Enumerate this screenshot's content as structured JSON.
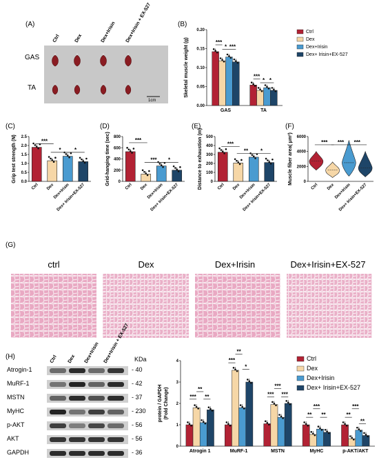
{
  "panels": {
    "A": "(A)",
    "B": "(B)",
    "C": "(C)",
    "D": "(D)",
    "E": "(E)",
    "F": "(F)",
    "G": "(G)",
    "H": "(H)"
  },
  "colors": {
    "ctrl": "#b22234",
    "dex": "#f6d7a7",
    "irisin": "#4a9bd0",
    "ex527": "#1e4568"
  },
  "photo": {
    "columns": [
      "Ctrl",
      "Dex",
      "Dex+Irisin",
      "Dex+Irisin + EX-527"
    ],
    "rows": [
      "GAS",
      "TA"
    ],
    "scale_bar": "1cm"
  },
  "he_stain": {
    "columns": [
      "ctrl",
      "Dex",
      "Dex+Irisin",
      "Dex+Irisin+EX-527"
    ]
  },
  "western": {
    "columns": [
      "Ctrl",
      "Dex",
      "Dex+Irisin",
      "Dex+Irisin + EX-527"
    ],
    "kda_label": "KDa",
    "rows": [
      {
        "name": "Atrogin-1",
        "kda": "40"
      },
      {
        "name": "MuRF-1",
        "kda": "42"
      },
      {
        "name": "MSTN",
        "kda": "37"
      },
      {
        "name": "MyHC",
        "kda": "230"
      },
      {
        "name": "p-AKT",
        "kda": "56"
      },
      {
        "name": "AKT",
        "kda": "56"
      },
      {
        "name": "GAPDH",
        "kda": "36"
      }
    ]
  },
  "chart_data": [
    {
      "id": "B",
      "type": "bar",
      "ylabel": "Skeletal muscle weight (g)",
      "ylim": [
        0,
        0.2
      ],
      "yticks": [
        0.0,
        0.05,
        0.1,
        0.15,
        0.2
      ],
      "categories": [
        "GAS",
        "TA"
      ],
      "series": [
        {
          "name": "Ctrl",
          "values": [
            0.142,
            0.054
          ]
        },
        {
          "name": "Dex",
          "values": [
            0.118,
            0.04
          ]
        },
        {
          "name": "Dex+Irisin",
          "values": [
            0.128,
            0.047
          ]
        },
        {
          "name": "Dex+ Irisin+EX-527",
          "values": [
            0.115,
            0.04
          ]
        }
      ],
      "significance": [
        {
          "group": 0,
          "from": 0,
          "to": 1,
          "label": "***",
          "y": 0.16
        },
        {
          "group": 0,
          "from": 1,
          "to": 2,
          "label": "*",
          "y": 0.148
        },
        {
          "group": 0,
          "from": 2,
          "to": 3,
          "label": "***",
          "y": 0.148
        },
        {
          "group": 1,
          "from": 0,
          "to": 1,
          "label": "***",
          "y": 0.07
        },
        {
          "group": 1,
          "from": 1,
          "to": 2,
          "label": "*",
          "y": 0.06
        },
        {
          "group": 1,
          "from": 2,
          "to": 3,
          "label": "*",
          "y": 0.06
        }
      ],
      "legend": "top-right"
    },
    {
      "id": "C",
      "type": "bar",
      "ylabel": "Grip test strength (N)",
      "ylim": [
        0,
        2.5
      ],
      "yticks": [
        0.0,
        0.5,
        1.0,
        1.5,
        2.0,
        2.5
      ],
      "categories": [
        "Ctrl",
        "Dex",
        "Dex+Irisin",
        "Dex+ Irisin+EX-527"
      ],
      "values": [
        1.9,
        1.15,
        1.4,
        1.1
      ],
      "significance": [
        {
          "from": 0,
          "to": 1,
          "label": "***",
          "y": 2.1
        },
        {
          "from": 1,
          "to": 2,
          "label": "*",
          "y": 1.62
        },
        {
          "from": 2,
          "to": 3,
          "label": "*",
          "y": 1.62
        }
      ]
    },
    {
      "id": "D",
      "type": "bar",
      "ylabel": "Grid-hanging time (sec)",
      "ylim": [
        0,
        800
      ],
      "yticks": [
        0,
        200,
        400,
        600,
        800
      ],
      "categories": [
        "Ctrl",
        "Dex",
        "Dex+Irisin",
        "Dex+ Irisin+EX-527"
      ],
      "values": [
        530,
        130,
        275,
        200
      ],
      "significance": [
        {
          "from": 0,
          "to": 1,
          "label": "***",
          "y": 690
        },
        {
          "from": 1,
          "to": 2,
          "label": "***",
          "y": 340
        },
        {
          "from": 2,
          "to": 3,
          "label": "*",
          "y": 340
        }
      ]
    },
    {
      "id": "E",
      "type": "bar",
      "ylabel": "Distance to exhaustion (m)",
      "ylim": [
        0,
        500
      ],
      "yticks": [
        0,
        100,
        200,
        300,
        400,
        500
      ],
      "categories": [
        "Ctrl",
        "Dex",
        "Dex+Irisin",
        "Dex+ Irisin+EX-527"
      ],
      "values": [
        325,
        205,
        270,
        210
      ],
      "significance": [
        {
          "from": 0,
          "to": 1,
          "label": "***",
          "y": 390
        },
        {
          "from": 1,
          "to": 2,
          "label": "**",
          "y": 310
        },
        {
          "from": 2,
          "to": 3,
          "label": "*",
          "y": 310
        }
      ]
    },
    {
      "id": "F",
      "type": "violin",
      "ylabel": "Muscle fiber area( μm²)",
      "ylim": [
        0,
        6000
      ],
      "yticks": [
        0,
        2000,
        4000,
        6000
      ],
      "categories": [
        "Ctrl",
        "Dex",
        "Dex+Irisin",
        "Dex+ Irisin+EX-527"
      ],
      "medians": [
        2700,
        1500,
        2500,
        1800
      ],
      "ranges": [
        [
          1500,
          4000
        ],
        [
          500,
          2600
        ],
        [
          700,
          5500
        ],
        [
          600,
          4000
        ]
      ],
      "significance": [
        {
          "from": 0,
          "to": 1,
          "label": "***",
          "y": 4900
        },
        {
          "from": 1,
          "to": 2,
          "label": "***",
          "y": 4900
        },
        {
          "from": 2,
          "to": 3,
          "label": "***",
          "y": 4900
        }
      ]
    },
    {
      "id": "H",
      "type": "bar",
      "ylabel": "protein / GAPDH\n(Fold Change)",
      "ylabel_lines": [
        "protein / GAPDH",
        "(Fold Change)"
      ],
      "ylim": [
        0,
        4
      ],
      "yticks": [
        0,
        1,
        2,
        3,
        4
      ],
      "categories": [
        "Atrogin 1",
        "MuRF-1",
        "MSTN",
        "MyHC",
        "p-AKT/AKT"
      ],
      "series": [
        {
          "name": "Ctrl",
          "values": [
            1.0,
            1.0,
            1.05,
            1.0,
            1.0
          ]
        },
        {
          "name": "Dex",
          "values": [
            1.8,
            3.55,
            1.95,
            0.55,
            0.35
          ]
        },
        {
          "name": "Dex+Irisin",
          "values": [
            1.1,
            1.8,
            1.35,
            0.8,
            0.75
          ]
        },
        {
          "name": "Dex+ Irisin+EX-527",
          "values": [
            1.7,
            3.0,
            2.0,
            0.65,
            0.5
          ]
        }
      ],
      "significance": [
        {
          "group": 0,
          "from": 0,
          "to": 1,
          "label": "***",
          "y": 2.2
        },
        {
          "group": 0,
          "from": 1,
          "to": 2,
          "label": "**",
          "y": 2.55
        },
        {
          "group": 0,
          "from": 2,
          "to": 3,
          "label": "**",
          "y": 2.2
        },
        {
          "group": 1,
          "from": 0,
          "to": 1,
          "label": "***",
          "y": 3.9
        },
        {
          "group": 1,
          "from": 1,
          "to": 2,
          "label": "**",
          "y": 4.3
        },
        {
          "group": 1,
          "from": 2,
          "to": 3,
          "label": "*",
          "y": 3.6
        },
        {
          "group": 2,
          "from": 0,
          "to": 1,
          "label": "***",
          "y": 2.3
        },
        {
          "group": 2,
          "from": 1,
          "to": 2,
          "label": "***",
          "y": 2.7
        },
        {
          "group": 2,
          "from": 2,
          "to": 3,
          "label": "***",
          "y": 2.3
        },
        {
          "group": 3,
          "from": 0,
          "to": 1,
          "label": "**",
          "y": 1.35
        },
        {
          "group": 3,
          "from": 1,
          "to": 2,
          "label": "***",
          "y": 1.75
        },
        {
          "group": 3,
          "from": 2,
          "to": 3,
          "label": "**",
          "y": 1.35
        },
        {
          "group": 4,
          "from": 0,
          "to": 1,
          "label": "**",
          "y": 1.35
        },
        {
          "group": 4,
          "from": 1,
          "to": 2,
          "label": "***",
          "y": 1.75
        },
        {
          "group": 4,
          "from": 2,
          "to": 3,
          "label": "**",
          "y": 1.05
        }
      ],
      "legend": "top-right"
    }
  ]
}
